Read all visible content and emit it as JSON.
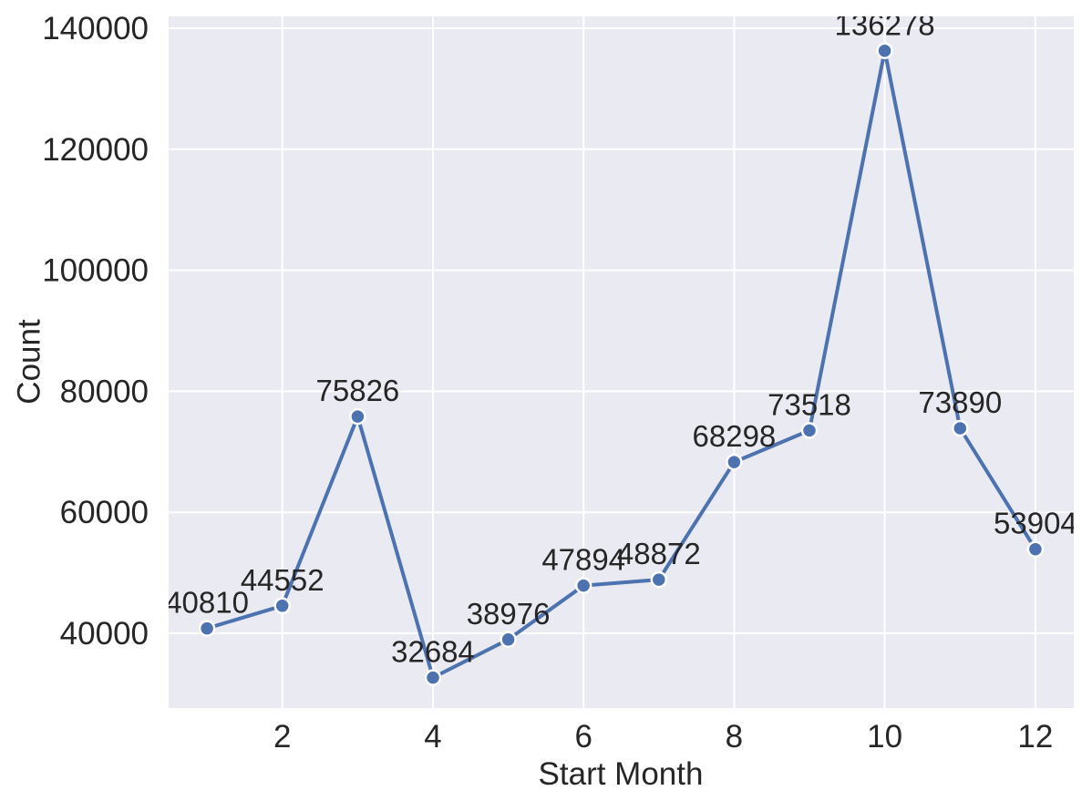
{
  "chart_data": {
    "type": "line",
    "title": "",
    "xlabel": "Start Month",
    "ylabel": "Count",
    "x": [
      1,
      2,
      3,
      4,
      5,
      6,
      7,
      8,
      9,
      10,
      11,
      12
    ],
    "values": [
      40810,
      44552,
      75826,
      32684,
      38976,
      47894,
      48872,
      68298,
      73518,
      136278,
      73890,
      53904
    ],
    "point_labels": [
      "40810",
      "44552",
      "75826",
      "32684",
      "38976",
      "47894",
      "48872",
      "68298",
      "73518",
      "136278",
      "73890",
      "53904"
    ],
    "xticks": [
      2,
      4,
      6,
      8,
      10,
      12
    ],
    "xtick_labels": [
      "2",
      "4",
      "6",
      "8",
      "10",
      "12"
    ],
    "yticks": [
      40000,
      60000,
      80000,
      100000,
      120000,
      140000
    ],
    "ytick_labels": [
      "40000",
      "60000",
      "80000",
      "100000",
      "120000",
      "140000"
    ],
    "xlim": [
      0.49,
      12.51
    ],
    "ylim": [
      27651,
      141958
    ],
    "grid": true,
    "legend": false,
    "marker": "circle",
    "style": {
      "figure_bg": "#ffffff",
      "plot_bg": "#eaeaf2",
      "grid_color": "#ffffff",
      "line_color": "#4c72b0",
      "marker_color": "#4c72b0",
      "marker_edge_color": "#ffffff",
      "text_color": "#262626"
    }
  }
}
